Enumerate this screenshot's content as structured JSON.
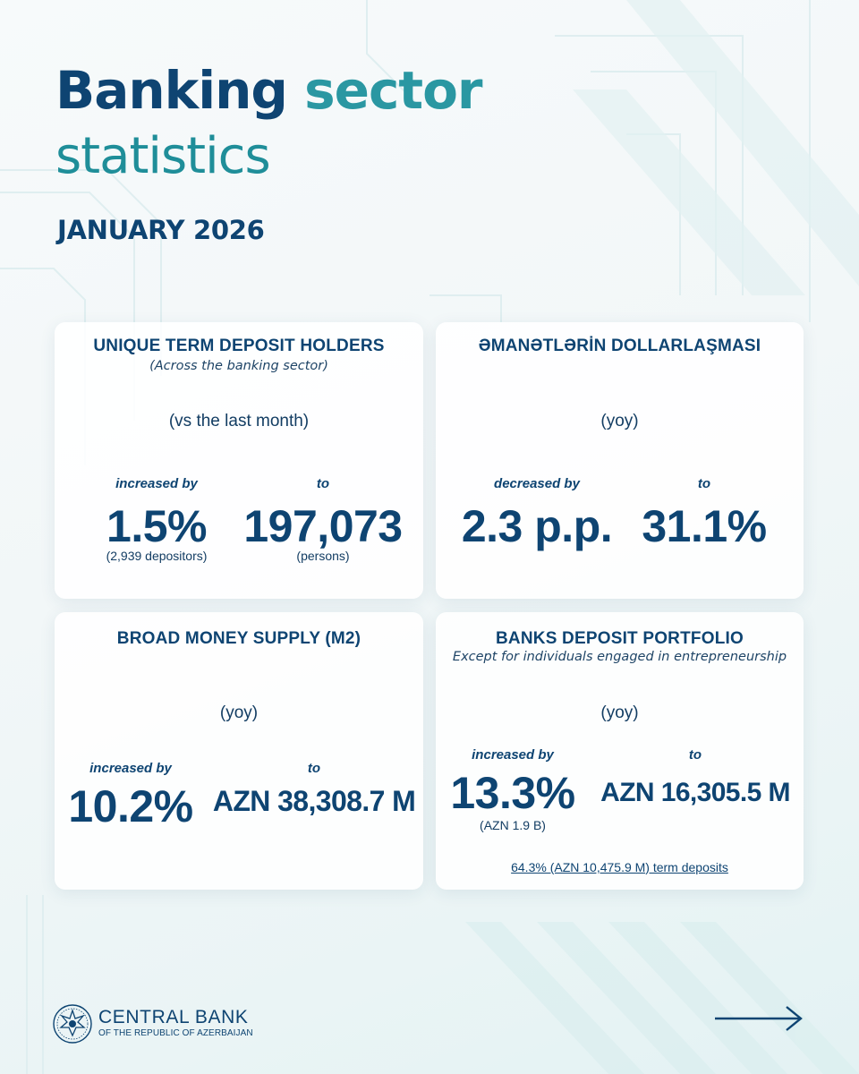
{
  "header": {
    "title_part1": "Banking",
    "title_part2": "sector",
    "title_line2": "statistics",
    "period": "JANUARY 2026"
  },
  "cards": [
    {
      "title": "UNIQUE TERM DEPOSIT HOLDERS",
      "subtitle": "(Across the banking sector)",
      "comparison": "(vs the last month)",
      "change_label": "increased by",
      "change_value": "1.5%",
      "change_detail": "(2,939 depositors)",
      "target_label": "to",
      "target_value": "197,073",
      "target_detail": "(persons)"
    },
    {
      "title": "ƏMANƏTLƏRİN DOLLARLAŞMASI",
      "comparison": "(yoy)",
      "change_label": "decreased by",
      "change_value": "2.3 p.p.",
      "target_label": "to",
      "target_value": "31.1%"
    },
    {
      "title": "BROAD MONEY SUPPLY (M2)",
      "comparison": "(yoy)",
      "change_label": "increased by",
      "change_value": "10.2%",
      "target_label": "to",
      "target_value": "AZN 38,308.7 M"
    },
    {
      "title": "BANKS DEPOSIT PORTFOLIO",
      "subtitle": "Except for individuals engaged in entrepreneurship",
      "comparison": "(yoy)",
      "change_label": "increased by",
      "change_value": "13.3%",
      "change_detail": "(AZN 1.9 B)",
      "target_label": "to",
      "target_value": "AZN 16,305.5 M",
      "footnote": "64.3% (AZN 10,475.9 M) term deposits"
    }
  ],
  "footer": {
    "bank_name": "CENTRAL BANK",
    "bank_subtitle": "OF THE REPUBLIC OF AZERBAIJAN",
    "logo_icon": "central-bank-emblem-icon",
    "next_icon": "arrow-right-icon"
  },
  "colors": {
    "primary": "#0e4472",
    "accent": "#2a97a2",
    "background": "#f2f7f8"
  }
}
